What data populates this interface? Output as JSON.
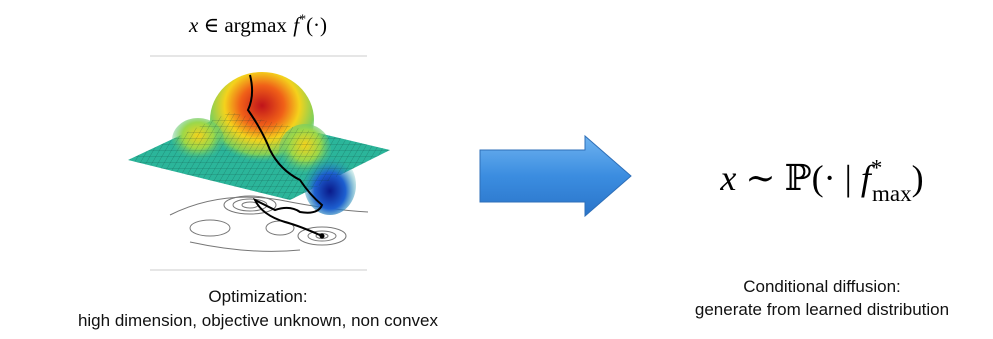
{
  "left": {
    "formula": {
      "var": "x",
      "rel": "∈",
      "op": "argmax",
      "fn": "f",
      "sup": "*",
      "tail": "(·)"
    },
    "caption": [
      "Optimization:",
      "high dimension, objective unknown, non convex"
    ]
  },
  "right": {
    "formula": {
      "var": "x",
      "rel": "∼",
      "op": "ℙ(· | ",
      "fn": "f",
      "sup": "*",
      "sub": "max",
      "tail": ")"
    },
    "caption": [
      "Conditional diffusion:",
      "generate from learned distribution"
    ]
  }
}
